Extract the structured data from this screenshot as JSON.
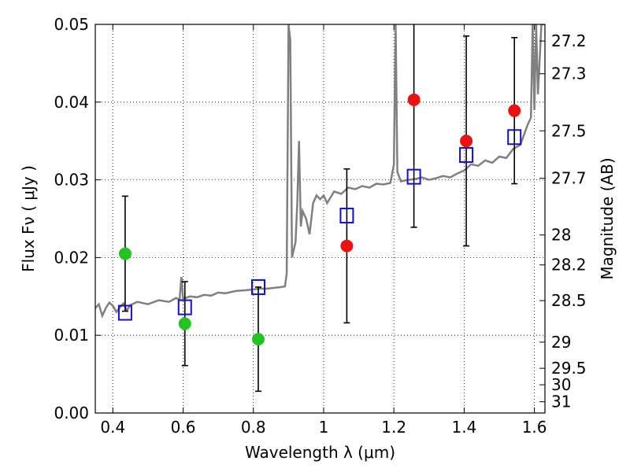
{
  "chart_data": {
    "type": "scatter",
    "xlabel": "Wavelength  λ (μm)",
    "ylabel": "Flux  Fν  ( μJy )",
    "y2label": "Magnitude (AB)",
    "xlim": [
      0.35,
      1.63
    ],
    "ylim": [
      0.0,
      0.05
    ],
    "grid": true,
    "x_ticks": [
      0.4,
      0.6,
      0.8,
      1.0,
      1.2,
      1.4,
      1.6
    ],
    "x_tick_labels": [
      "0.4",
      "0.6",
      "0.8",
      "1",
      "1.2",
      "1.4",
      "1.6"
    ],
    "y_ticks": [
      0.0,
      0.01,
      0.02,
      0.03,
      0.04,
      0.05
    ],
    "y_tick_labels": [
      "0.00",
      "0.01",
      "0.02",
      "0.03",
      "0.04",
      "0.05"
    ],
    "y2_ticks": [
      "27.2",
      "27.3",
      "27.5",
      "27.7",
      "28",
      "28.2",
      "28.5",
      "29",
      "29.5",
      "30",
      "31"
    ],
    "colors": {
      "green_points": "#22c322",
      "red_points": "#ee1111",
      "model_boxes": "#1111cc",
      "spectrum": "#808080",
      "errorbars": "#000000"
    },
    "series": [
      {
        "kind": "errorbar",
        "x": [
          0.435,
          0.605,
          0.814,
          1.066,
          1.257,
          1.406,
          1.543
        ],
        "y": [
          0.0205,
          0.0115,
          0.0095,
          0.0215,
          0.0403,
          0.035,
          0.0389
        ],
        "yerr": [
          0.0074,
          0.0054,
          0.0067,
          0.0099,
          0.0164,
          0.0135,
          0.0094
        ]
      },
      {
        "kind": "filled-circle",
        "color": "#22c322",
        "x": [
          0.435,
          0.605,
          0.814
        ],
        "y": [
          0.0205,
          0.0115,
          0.0095
        ]
      },
      {
        "kind": "filled-circle",
        "color": "#ee1111",
        "x": [
          1.066,
          1.257,
          1.406,
          1.543
        ],
        "y": [
          0.0215,
          0.0403,
          0.035,
          0.0389
        ]
      },
      {
        "kind": "open-square",
        "color": "#1111cc",
        "x": [
          0.435,
          0.605,
          0.814,
          1.066,
          1.257,
          1.406,
          1.543
        ],
        "y": [
          0.0129,
          0.0136,
          0.0162,
          0.0254,
          0.0304,
          0.0332,
          0.0355
        ]
      },
      {
        "kind": "spectrum-line",
        "color": "#808080",
        "x": [
          0.35,
          0.36,
          0.37,
          0.38,
          0.39,
          0.4,
          0.41,
          0.42,
          0.43,
          0.44,
          0.45,
          0.47,
          0.5,
          0.53,
          0.56,
          0.58,
          0.59,
          0.595,
          0.6,
          0.62,
          0.64,
          0.66,
          0.68,
          0.7,
          0.72,
          0.75,
          0.78,
          0.8,
          0.82,
          0.84,
          0.86,
          0.88,
          0.89,
          0.895,
          0.9,
          0.905,
          0.91,
          0.92,
          0.925,
          0.93,
          0.935,
          0.94,
          0.95,
          0.96,
          0.97,
          0.98,
          0.99,
          1.0,
          1.01,
          1.03,
          1.05,
          1.07,
          1.09,
          1.11,
          1.13,
          1.15,
          1.17,
          1.19,
          1.2,
          1.205,
          1.21,
          1.22,
          1.24,
          1.26,
          1.28,
          1.3,
          1.32,
          1.34,
          1.36,
          1.38,
          1.4,
          1.42,
          1.44,
          1.46,
          1.48,
          1.5,
          1.52,
          1.54,
          1.56,
          1.58,
          1.59,
          1.595,
          1.6,
          1.605,
          1.61,
          1.62,
          1.63
        ],
        "y": [
          0.0135,
          0.014,
          0.0125,
          0.0135,
          0.0142,
          0.0138,
          0.013,
          0.0136,
          0.0141,
          0.0132,
          0.0139,
          0.0143,
          0.014,
          0.0145,
          0.0143,
          0.0148,
          0.0146,
          0.0175,
          0.0147,
          0.015,
          0.0149,
          0.0152,
          0.0151,
          0.0155,
          0.0154,
          0.0157,
          0.0158,
          0.0159,
          0.016,
          0.016,
          0.0161,
          0.0162,
          0.0163,
          0.018,
          0.05,
          0.048,
          0.02,
          0.022,
          0.027,
          0.035,
          0.024,
          0.026,
          0.025,
          0.023,
          0.027,
          0.028,
          0.0275,
          0.028,
          0.027,
          0.0285,
          0.0282,
          0.029,
          0.0288,
          0.0292,
          0.029,
          0.0295,
          0.0294,
          0.0296,
          0.032,
          0.05,
          0.031,
          0.0298,
          0.03,
          0.0301,
          0.0303,
          0.03,
          0.0302,
          0.0305,
          0.0303,
          0.0308,
          0.0312,
          0.032,
          0.0318,
          0.0325,
          0.0322,
          0.033,
          0.0328,
          0.034,
          0.0345,
          0.037,
          0.038,
          0.05,
          0.039,
          0.05,
          0.041,
          0.05,
          0.05
        ]
      }
    ]
  }
}
